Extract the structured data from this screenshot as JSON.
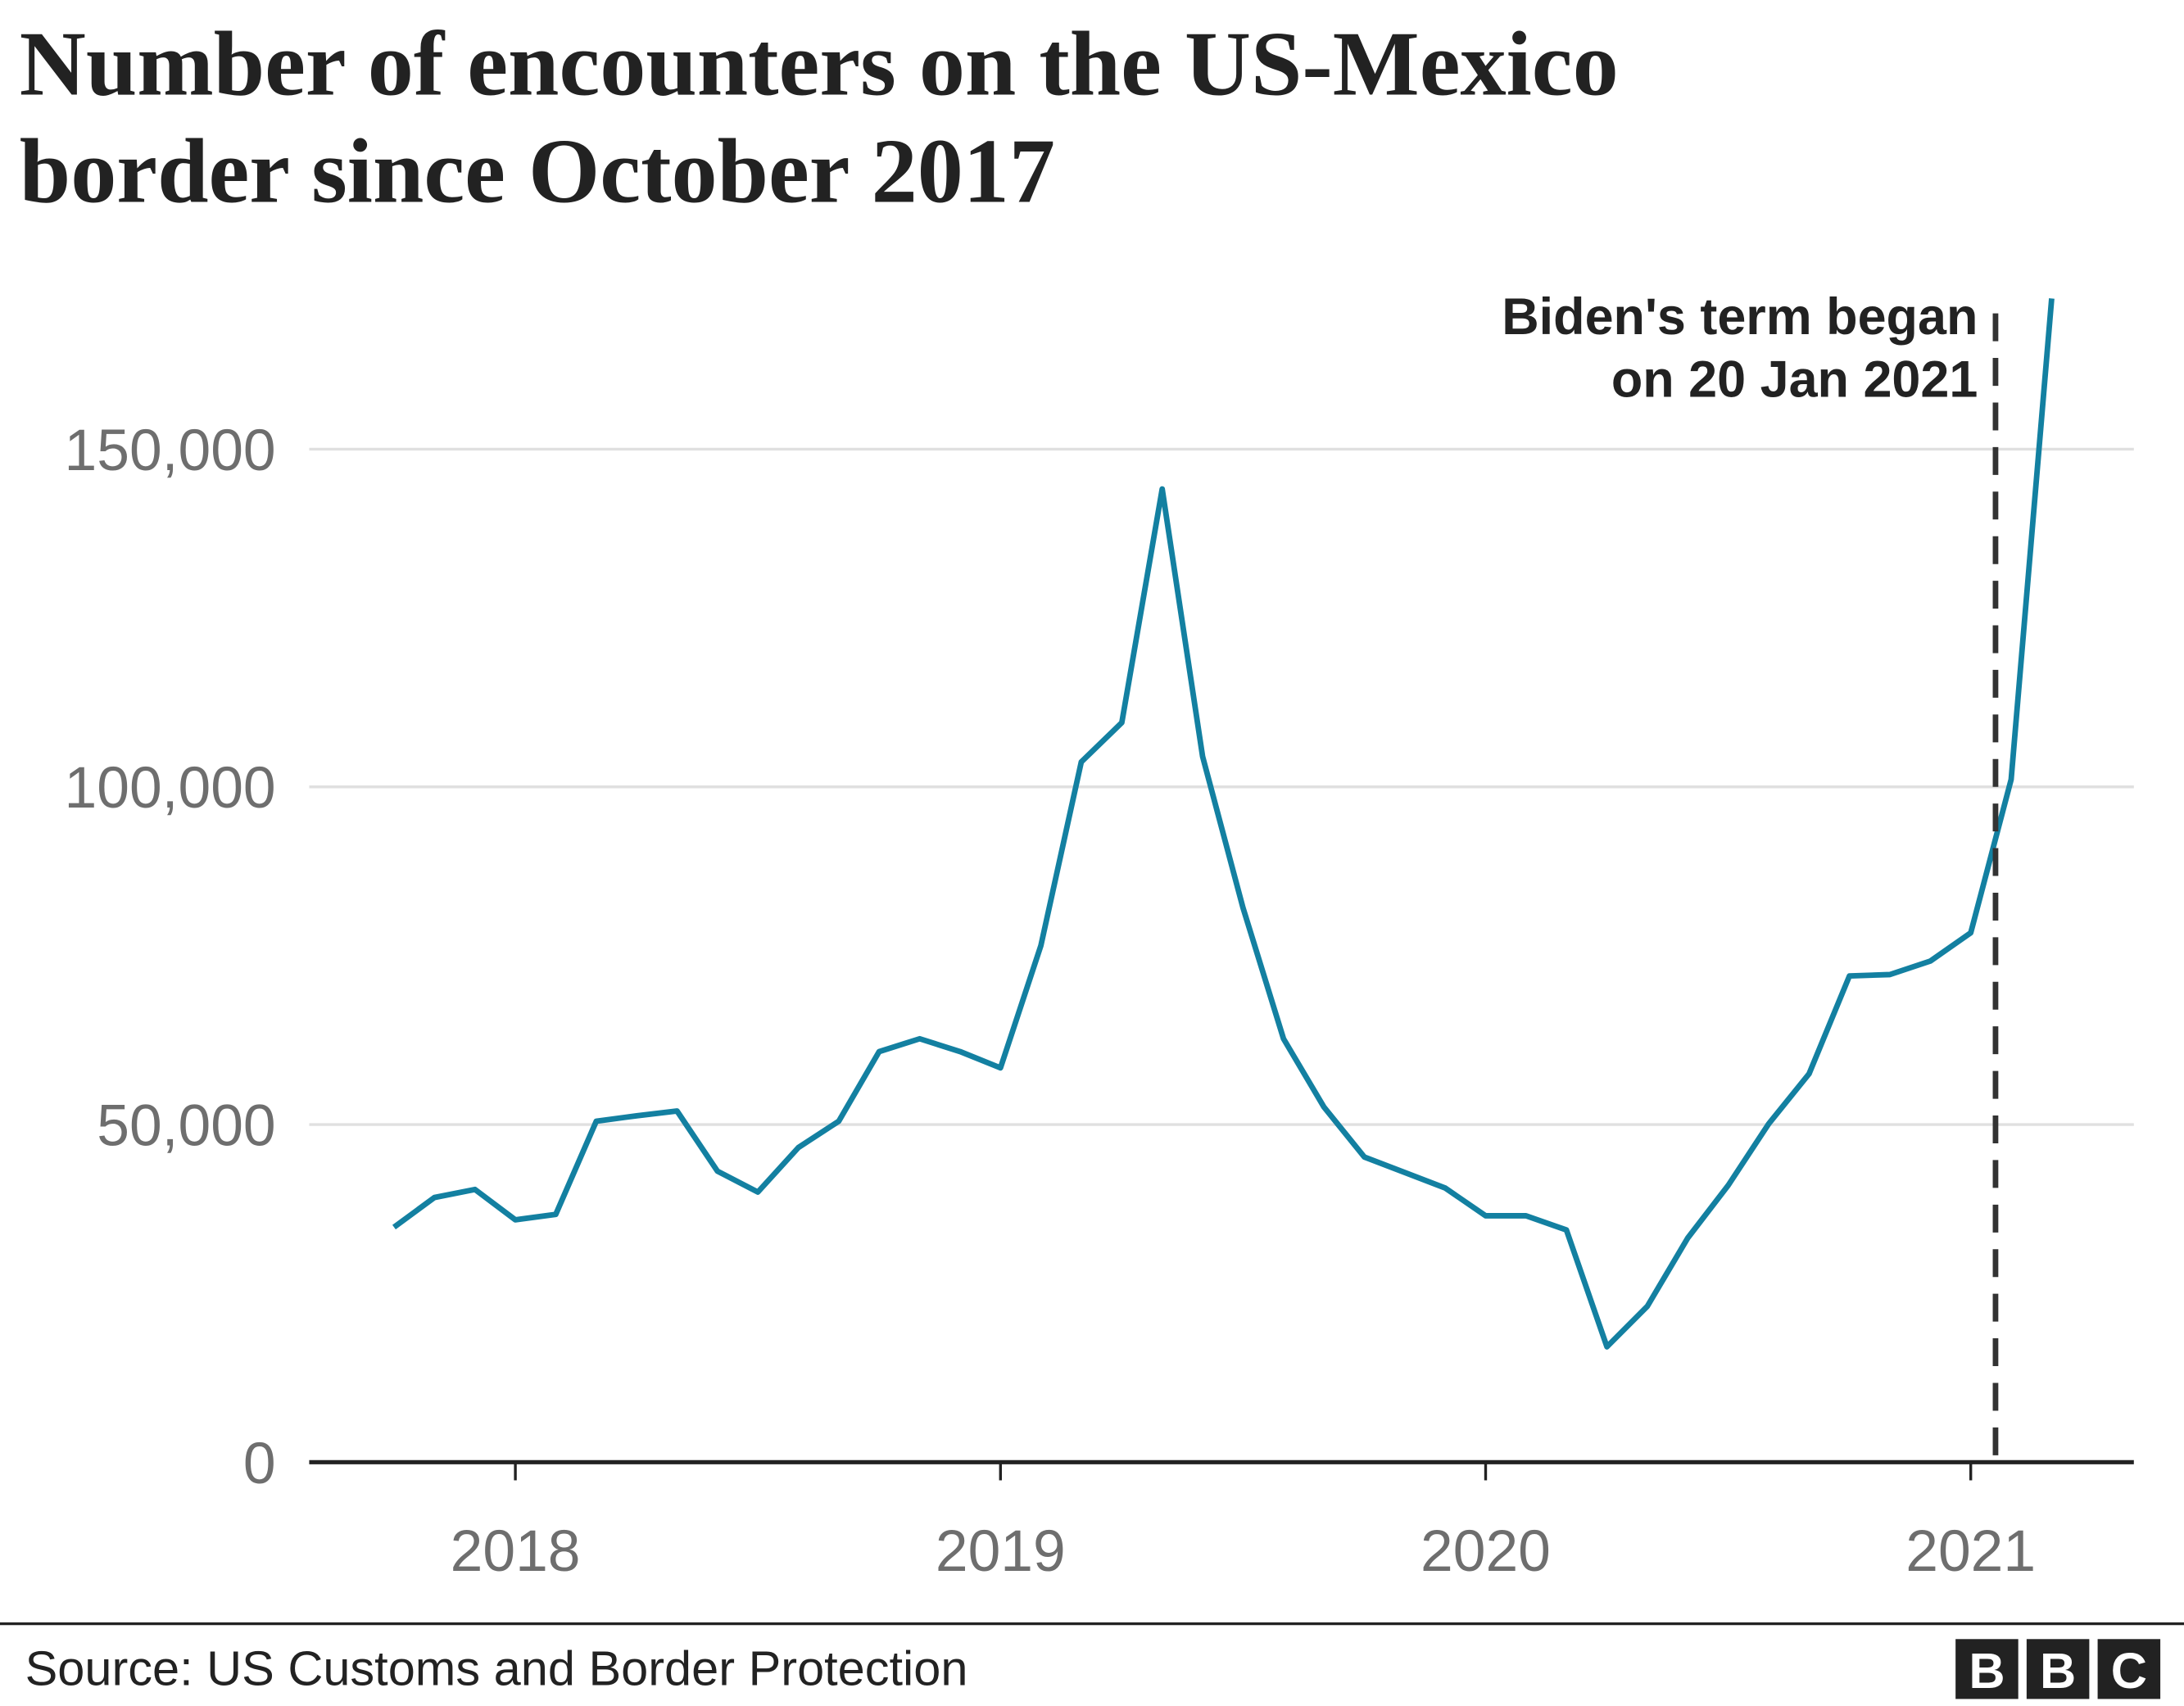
{
  "chart_data": {
    "type": "line",
    "title": "Number of encounters on the US-Mexico border since October 2017",
    "title_lines": [
      "Number of encounters on the US-Mexico",
      "border since October 2017"
    ],
    "xlabel": "",
    "ylabel": "",
    "ylim": [
      0,
      175000
    ],
    "yticks": [
      0,
      50000,
      100000,
      150000
    ],
    "ytick_labels": [
      "0",
      "50,000",
      "100,000",
      "150,000"
    ],
    "xticks": [
      "2018",
      "2019",
      "2020",
      "2021"
    ],
    "grid": "horizontal",
    "line_color": "#1380a1",
    "series": [
      {
        "x": [
          "2017-10",
          "2017-11",
          "2017-12",
          "2018-01",
          "2018-02",
          "2018-03",
          "2018-04",
          "2018-05",
          "2018-06",
          "2018-07",
          "2018-08",
          "2018-09",
          "2018-10",
          "2018-11",
          "2018-12",
          "2019-01",
          "2019-02",
          "2019-03",
          "2019-04",
          "2019-05",
          "2019-06",
          "2019-07",
          "2019-08",
          "2019-09",
          "2019-10",
          "2019-11",
          "2019-12",
          "2020-01",
          "2020-02",
          "2020-03",
          "2020-04",
          "2020-05",
          "2020-06",
          "2020-07",
          "2020-08",
          "2020-09",
          "2020-10",
          "2020-11",
          "2020-12",
          "2021-01",
          "2021-02",
          "2021-03"
        ],
        "values": [
          34800,
          39200,
          40400,
          35900,
          36700,
          50500,
          51300,
          52000,
          43100,
          40000,
          46600,
          50500,
          60800,
          62700,
          60800,
          58400,
          76500,
          103700,
          109500,
          144100,
          104500,
          82100,
          62700,
          52600,
          45200,
          42900,
          40600,
          36500,
          36500,
          34400,
          17100,
          23100,
          33200,
          41000,
          50100,
          57500,
          72000,
          72200,
          74200,
          78400,
          101100,
          172300
        ]
      }
    ],
    "annotation": {
      "date": "2021-01-20",
      "lines": [
        "Biden's term began",
        "on 20 Jan 2021"
      ],
      "style": "dashed",
      "color": "#333333"
    }
  },
  "footer": {
    "source": "Source: US Customs and Border Protection",
    "logo": [
      "B",
      "B",
      "C"
    ]
  }
}
